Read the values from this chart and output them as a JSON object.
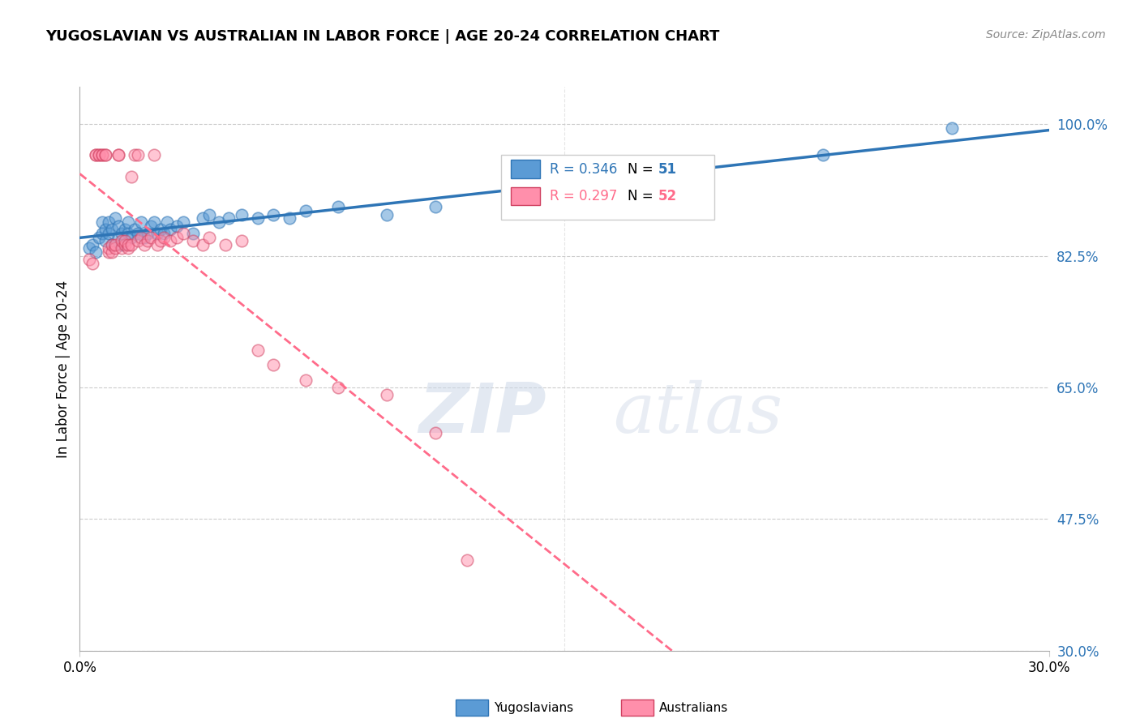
{
  "title": "YUGOSLAVIAN VS AUSTRALIAN IN LABOR FORCE | AGE 20-24 CORRELATION CHART",
  "source": "Source: ZipAtlas.com",
  "ylabel": "In Labor Force | Age 20-24",
  "xlim": [
    0.0,
    0.3
  ],
  "ylim": [
    0.3,
    1.05
  ],
  "yticks": [
    0.3,
    0.475,
    0.65,
    0.825,
    1.0
  ],
  "ytick_labels": [
    "30.0%",
    "47.5%",
    "65.0%",
    "82.5%",
    "100.0%"
  ],
  "xtick_labels": [
    "0.0%",
    "30.0%"
  ],
  "legend_r_blue": "R = 0.346",
  "legend_n_blue": "N = 51",
  "legend_r_pink": "R = 0.297",
  "legend_n_pink": "N = 52",
  "legend_label_blue": "Yugoslavians",
  "legend_label_pink": "Australians",
  "blue_color": "#5B9BD5",
  "pink_color": "#FF8FAB",
  "blue_line_color": "#2E75B6",
  "pink_line_color": "#FF6B8A",
  "watermark_zip": "ZIP",
  "watermark_atlas": "atlas",
  "blue_scatter_x": [
    0.003,
    0.004,
    0.005,
    0.006,
    0.007,
    0.007,
    0.008,
    0.008,
    0.009,
    0.009,
    0.01,
    0.01,
    0.011,
    0.012,
    0.012,
    0.013,
    0.013,
    0.014,
    0.015,
    0.015,
    0.016,
    0.017,
    0.018,
    0.019,
    0.02,
    0.021,
    0.022,
    0.023,
    0.024,
    0.025,
    0.026,
    0.027,
    0.028,
    0.03,
    0.032,
    0.035,
    0.038,
    0.04,
    0.043,
    0.046,
    0.05,
    0.055,
    0.06,
    0.065,
    0.07,
    0.08,
    0.095,
    0.11,
    0.15,
    0.23,
    0.27
  ],
  "blue_scatter_y": [
    0.835,
    0.84,
    0.83,
    0.85,
    0.87,
    0.855,
    0.86,
    0.845,
    0.855,
    0.87,
    0.84,
    0.86,
    0.875,
    0.85,
    0.865,
    0.84,
    0.855,
    0.86,
    0.855,
    0.87,
    0.85,
    0.86,
    0.855,
    0.87,
    0.85,
    0.855,
    0.865,
    0.87,
    0.855,
    0.86,
    0.855,
    0.87,
    0.86,
    0.865,
    0.87,
    0.855,
    0.875,
    0.88,
    0.87,
    0.875,
    0.88,
    0.875,
    0.88,
    0.875,
    0.885,
    0.89,
    0.88,
    0.89,
    0.895,
    0.96,
    0.995
  ],
  "pink_scatter_x": [
    0.003,
    0.004,
    0.005,
    0.005,
    0.006,
    0.006,
    0.007,
    0.007,
    0.008,
    0.008,
    0.009,
    0.009,
    0.01,
    0.01,
    0.011,
    0.011,
    0.012,
    0.012,
    0.013,
    0.013,
    0.014,
    0.014,
    0.015,
    0.015,
    0.016,
    0.016,
    0.017,
    0.018,
    0.018,
    0.019,
    0.02,
    0.021,
    0.022,
    0.023,
    0.024,
    0.025,
    0.026,
    0.028,
    0.03,
    0.032,
    0.035,
    0.038,
    0.04,
    0.045,
    0.05,
    0.055,
    0.06,
    0.07,
    0.08,
    0.095,
    0.11,
    0.12
  ],
  "pink_scatter_y": [
    0.82,
    0.815,
    0.96,
    0.96,
    0.96,
    0.96,
    0.96,
    0.96,
    0.96,
    0.96,
    0.83,
    0.835,
    0.83,
    0.84,
    0.835,
    0.84,
    0.96,
    0.96,
    0.835,
    0.845,
    0.84,
    0.845,
    0.835,
    0.84,
    0.93,
    0.84,
    0.96,
    0.845,
    0.96,
    0.85,
    0.84,
    0.845,
    0.85,
    0.96,
    0.84,
    0.845,
    0.85,
    0.845,
    0.85,
    0.855,
    0.845,
    0.84,
    0.85,
    0.84,
    0.845,
    0.7,
    0.68,
    0.66,
    0.65,
    0.64,
    0.59,
    0.42
  ]
}
